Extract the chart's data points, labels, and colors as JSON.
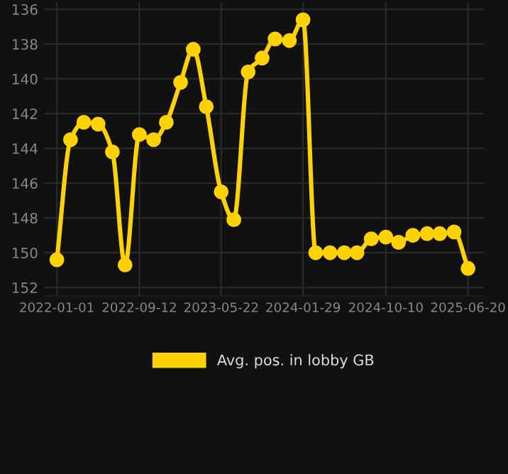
{
  "chart_data": {
    "type": "line",
    "x": [
      "2022-01-01",
      "2022-02-12",
      "2022-03-25",
      "2022-05-08",
      "2022-06-21",
      "2022-07-30",
      "2022-09-12",
      "2022-10-26",
      "2022-12-04",
      "2023-01-17",
      "2023-02-25",
      "2023-04-06",
      "2023-05-22",
      "2023-06-30",
      "2023-08-13",
      "2023-09-25",
      "2023-11-04",
      "2023-12-18",
      "2024-01-29",
      "2024-03-08",
      "2024-04-21",
      "2024-06-04",
      "2024-07-13",
      "2024-08-26",
      "2024-10-10",
      "2024-11-18",
      "2025-01-01",
      "2025-02-14",
      "2025-03-25",
      "2025-05-08",
      "2025-06-20"
    ],
    "series": [
      {
        "name": "Avg. pos. in lobby GB",
        "color": "#ffd200",
        "values": [
          150.4,
          143.5,
          142.5,
          142.6,
          144.2,
          150.7,
          143.2,
          143.5,
          142.5,
          140.2,
          138.3,
          141.6,
          146.5,
          148.1,
          139.6,
          138.8,
          137.7,
          137.8,
          136.6,
          150.0,
          150.0,
          150.0,
          150.0,
          149.2,
          149.1,
          149.4,
          149.0,
          148.9,
          148.9,
          148.8,
          150.9
        ]
      }
    ],
    "ylim": [
      152.5,
      135.6
    ],
    "yticks": [
      136,
      138,
      140,
      142,
      144,
      146,
      148,
      150,
      152
    ],
    "xlim": [
      "2021-11-23",
      "2025-08-07"
    ],
    "xticks": [
      "2022-01-01",
      "2022-09-12",
      "2023-05-22",
      "2024-01-29",
      "2024-10-10",
      "2025-06-20"
    ],
    "grid": true,
    "legend": "bottom",
    "marker": "circle",
    "line_style": "solid"
  }
}
